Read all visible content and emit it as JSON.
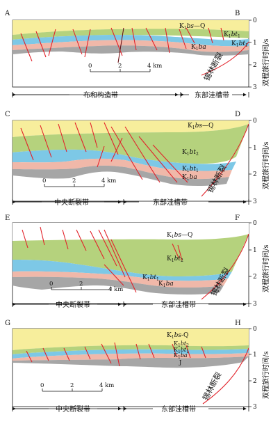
{
  "time_axis": {
    "label": "双程旅行时间/s",
    "ticks": [
      "0",
      "1",
      "2",
      "3"
    ]
  },
  "scale_bar": {
    "ticks": [
      "0",
      "2",
      "4 km"
    ]
  },
  "fault_label": "锡林断裂",
  "colors": {
    "k1bs_q": "#f7ee9c",
    "k1bt2": "#b5d27d",
    "k1bt1": "#7dc8e6",
    "k1ba": "#f0b8a9",
    "j": "#a6a6a6",
    "fault": "#e2222a"
  },
  "sections": [
    {
      "start": "A",
      "end": "B",
      "zones": [
        "布和构造带",
        "东部洼槽带"
      ],
      "units": [
        {
          "main": "K",
          "sub": "1",
          "ital": "bs",
          "tail": "—Q"
        },
        {
          "main": "K",
          "sub": "1",
          "ital": "bt",
          "sub2": "1"
        },
        {
          "main": "K",
          "sub": "1",
          "ital": "bt",
          "sub2": "1"
        },
        {
          "main": "K",
          "sub": "1",
          "ital": "ba",
          "tail": ""
        }
      ]
    },
    {
      "start": "C",
      "end": "D",
      "zones": [
        "中央断裂带",
        "东部洼槽带"
      ],
      "units": [
        {
          "main": "K",
          "sub": "1",
          "ital": "bs",
          "tail": "—Q"
        },
        {
          "main": "K",
          "sub": "1",
          "ital": "bt",
          "sub2": "2"
        },
        {
          "main": "K",
          "sub": "1",
          "ital": "bt",
          "sub2": "1"
        },
        {
          "main": "K",
          "sub": "1",
          "ital": "ba",
          "tail": ""
        }
      ]
    },
    {
      "start": "E",
      "end": "F",
      "zones": [
        "中央断裂带",
        "东部洼槽带"
      ],
      "units": [
        {
          "main": "K",
          "sub": "1",
          "ital": "bs",
          "tail": "—Q"
        },
        {
          "main": "K",
          "sub": "1",
          "ital": "bt",
          "sub2": "2"
        },
        {
          "main": "K",
          "sub": "1",
          "ital": "bt",
          "sub2": "1"
        },
        {
          "main": "K",
          "sub": "1",
          "ital": "ba",
          "tail": ""
        }
      ]
    },
    {
      "start": "G",
      "end": "H",
      "zones": [
        "中央断裂带",
        "东部洼槽带"
      ],
      "units": [
        {
          "main": "K",
          "sub": "1",
          "ital": "bs",
          "tail": "-Q"
        },
        {
          "main": "K",
          "sub": "1",
          "ital": "bt",
          "sub2": "2"
        },
        {
          "main": "K",
          "sub": "1",
          "ital": "bt",
          "sub2": "1"
        },
        {
          "main": "K",
          "sub": "1",
          "ital": "ba",
          "tail": ""
        },
        {
          "main": "J"
        }
      ]
    }
  ]
}
